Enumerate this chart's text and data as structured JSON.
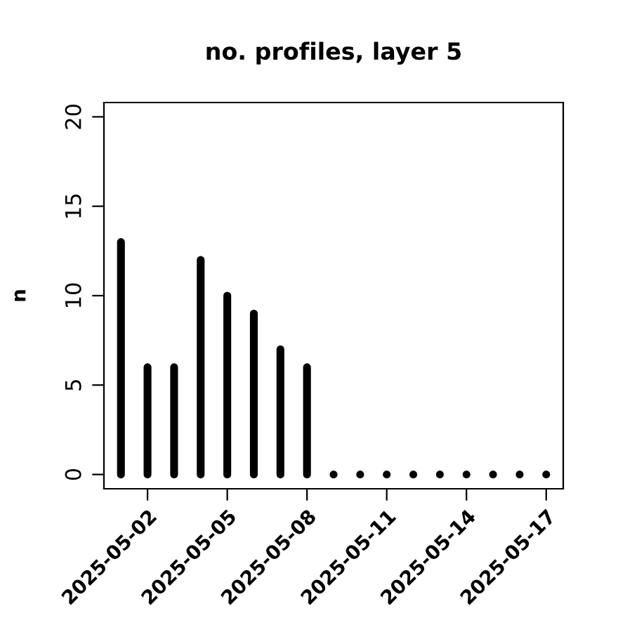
{
  "chart_data": {
    "type": "bar",
    "title": "no. profiles, layer 5",
    "ylabel": "n",
    "x": [
      "2025-05-01",
      "2025-05-02",
      "2025-05-03",
      "2025-05-04",
      "2025-05-05",
      "2025-05-06",
      "2025-05-07",
      "2025-05-08",
      "2025-05-09",
      "2025-05-10",
      "2025-05-11",
      "2025-05-12",
      "2025-05-13",
      "2025-05-14",
      "2025-05-15",
      "2025-05-16",
      "2025-05-17"
    ],
    "values": [
      13,
      6,
      6,
      12,
      10,
      9,
      7,
      6,
      0,
      0,
      0,
      0,
      0,
      0,
      0,
      0,
      0
    ],
    "color": "#000000",
    "xlim": [
      "2025-04-30T08:38",
      "2025-05-17T15:22"
    ],
    "xticks": [
      {
        "value": "2025-05-02",
        "label": "2025-05-02"
      },
      {
        "value": "2025-05-05",
        "label": "2025-05-05"
      },
      {
        "value": "2025-05-08",
        "label": "2025-05-08"
      },
      {
        "value": "2025-05-11",
        "label": "2025-05-11"
      },
      {
        "value": "2025-05-14",
        "label": "2025-05-14"
      },
      {
        "value": "2025-05-17",
        "label": "2025-05-17"
      }
    ],
    "ylim": [
      -0.8,
      20.8
    ],
    "yticks": [
      0,
      5,
      10,
      15,
      20
    ],
    "grid": false,
    "legend": false
  }
}
